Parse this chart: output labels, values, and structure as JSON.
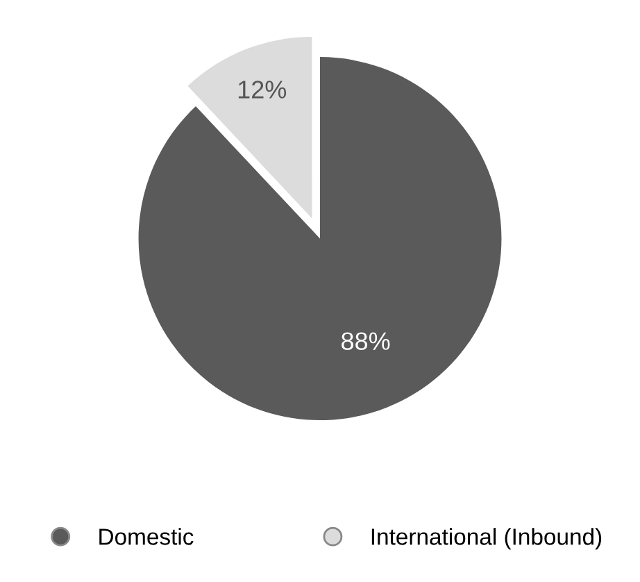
{
  "chart_data": {
    "type": "pie",
    "categories": [
      "Domestic",
      "International (Inbound)"
    ],
    "values": [
      88,
      12
    ],
    "colors": [
      "#5a5a5a",
      "#dcdcdc"
    ],
    "value_labels": [
      "88%",
      "12%"
    ],
    "legend": "bottom"
  }
}
